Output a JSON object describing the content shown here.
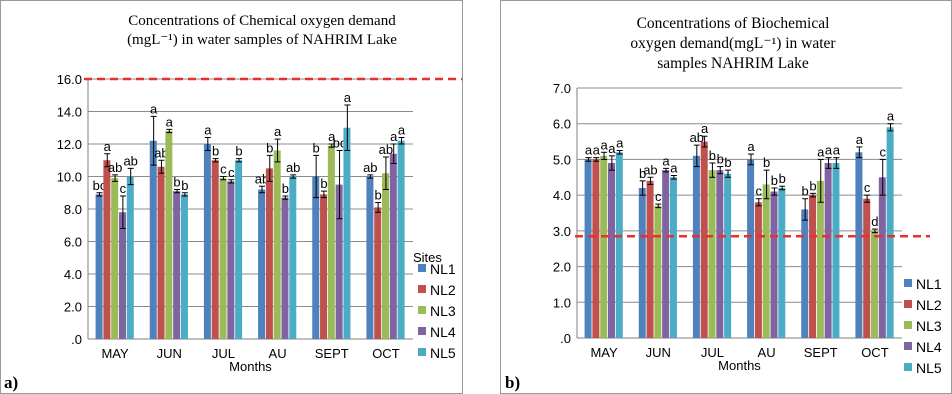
{
  "panel_tags": [
    "a)",
    "b)"
  ],
  "sites_label": "Sites",
  "chart_data": [
    {
      "type": "bar",
      "title_lines": [
        "Concentrations of  Chemical oxygen demand",
        "(mgL⁻¹)  in water samples of NAHRIM Lake"
      ],
      "xlabel": "Months",
      "ylabel": "",
      "categories": [
        "MAY",
        "JUN",
        "JUL",
        "AU",
        "SEPT",
        "OCT"
      ],
      "ylim": [
        0,
        16
      ],
      "yticks": [
        0,
        2,
        4,
        6,
        8,
        10,
        12,
        14,
        16
      ],
      "ytick_labels": [
        ".0",
        "2.0",
        "4.0",
        "6.0",
        "8.0",
        "10.0",
        "12.0",
        "14.0",
        "16.0"
      ],
      "reference_line": {
        "value": 16.0,
        "color": "#e8302c",
        "style": "dashed"
      },
      "grid": true,
      "legend_position": "right",
      "series": [
        {
          "name": "NL1",
          "color": "#4f81bd",
          "values": [
            8.9,
            12.2,
            12.0,
            9.2,
            10.0,
            10.0
          ],
          "errors": [
            0.1,
            1.5,
            0.4,
            0.2,
            1.3,
            0.1
          ],
          "labels": [
            "bc",
            "a",
            "a",
            "ab",
            "b",
            "ab"
          ]
        },
        {
          "name": "NL2",
          "color": "#c0504d",
          "values": [
            11.0,
            10.6,
            11.0,
            10.5,
            8.9,
            8.1
          ],
          "errors": [
            0.4,
            0.4,
            0.1,
            0.8,
            0.2,
            0.3
          ],
          "labels": [
            "a",
            "ab",
            "b",
            "b",
            "b",
            "b"
          ]
        },
        {
          "name": "NL3",
          "color": "#9bbb59",
          "values": [
            9.9,
            12.8,
            9.9,
            11.6,
            11.9,
            10.2
          ],
          "errors": [
            0.2,
            0.1,
            0.1,
            0.7,
            0.1,
            1.0
          ],
          "labels": [
            "ab",
            "a",
            "c",
            "a",
            "a",
            "ab"
          ]
        },
        {
          "name": "NL4",
          "color": "#8064a2",
          "values": [
            7.8,
            9.1,
            9.7,
            8.7,
            9.5,
            11.4
          ],
          "errors": [
            1.0,
            0.1,
            0.1,
            0.1,
            2.1,
            0.6
          ],
          "labels": [
            "c",
            "b",
            "c",
            "b",
            "bc",
            "a"
          ]
        },
        {
          "name": "NL5",
          "color": "#4bacc6",
          "values": [
            10.0,
            8.9,
            11.0,
            10.0,
            13.0,
            12.2
          ],
          "errors": [
            0.5,
            0.1,
            0.1,
            0.1,
            1.4,
            0.2
          ],
          "labels": [
            "ab",
            "b",
            "b",
            "ab",
            "a",
            "a"
          ]
        }
      ]
    },
    {
      "type": "bar",
      "title_lines": [
        "Concentrations  of  Biochemical",
        "oxygen demand(mgL⁻¹) in water",
        "samples NAHRIM Lake"
      ],
      "xlabel": "Months",
      "ylabel": "",
      "categories": [
        "MAY",
        "JUN",
        "JUL",
        "AU",
        "SEPT",
        "OCT"
      ],
      "ylim": [
        0,
        7
      ],
      "yticks": [
        0,
        1,
        2,
        3,
        4,
        5,
        6,
        7
      ],
      "ytick_labels": [
        ".0",
        "1.0",
        "2.0",
        "3.0",
        "4.0",
        "5.0",
        "6.0",
        "7.0"
      ],
      "reference_line": {
        "value": 2.85,
        "color": "#e8302c",
        "style": "dashed"
      },
      "grid": true,
      "legend_position": "right",
      "series": [
        {
          "name": "NL1",
          "color": "#4f81bd",
          "values": [
            5.0,
            4.2,
            5.1,
            5.0,
            3.6,
            5.2
          ],
          "errors": [
            0.05,
            0.2,
            0.3,
            0.15,
            0.3,
            0.15
          ],
          "labels": [
            "a",
            "b",
            "ab",
            "a",
            "b",
            "a"
          ]
        },
        {
          "name": "NL2",
          "color": "#c0504d",
          "values": [
            5.0,
            4.4,
            5.5,
            3.8,
            4.0,
            3.9
          ],
          "errors": [
            0.05,
            0.1,
            0.15,
            0.1,
            0.05,
            0.1
          ],
          "labels": [
            "a",
            "ab",
            "a",
            "c",
            "b",
            "c"
          ]
        },
        {
          "name": "NL3",
          "color": "#9bbb59",
          "values": [
            5.1,
            3.7,
            4.7,
            4.3,
            4.4,
            3.0
          ],
          "errors": [
            0.1,
            0.05,
            0.2,
            0.4,
            0.6,
            0.05
          ],
          "labels": [
            "a",
            "c",
            "b",
            "b",
            "a",
            "d"
          ]
        },
        {
          "name": "NL4",
          "color": "#8064a2",
          "values": [
            4.9,
            4.7,
            4.7,
            4.1,
            4.9,
            4.5
          ],
          "errors": [
            0.2,
            0.05,
            0.1,
            0.1,
            0.15,
            0.5
          ],
          "labels": [
            "a",
            "a",
            "b",
            "b",
            "a",
            "c"
          ]
        },
        {
          "name": "NL5",
          "color": "#4bacc6",
          "values": [
            5.2,
            4.5,
            4.6,
            4.2,
            4.9,
            5.9
          ],
          "errors": [
            0.05,
            0.05,
            0.1,
            0.05,
            0.15,
            0.1
          ],
          "labels": [
            "a",
            "a",
            "b",
            "b",
            "a",
            "a"
          ]
        }
      ]
    }
  ]
}
